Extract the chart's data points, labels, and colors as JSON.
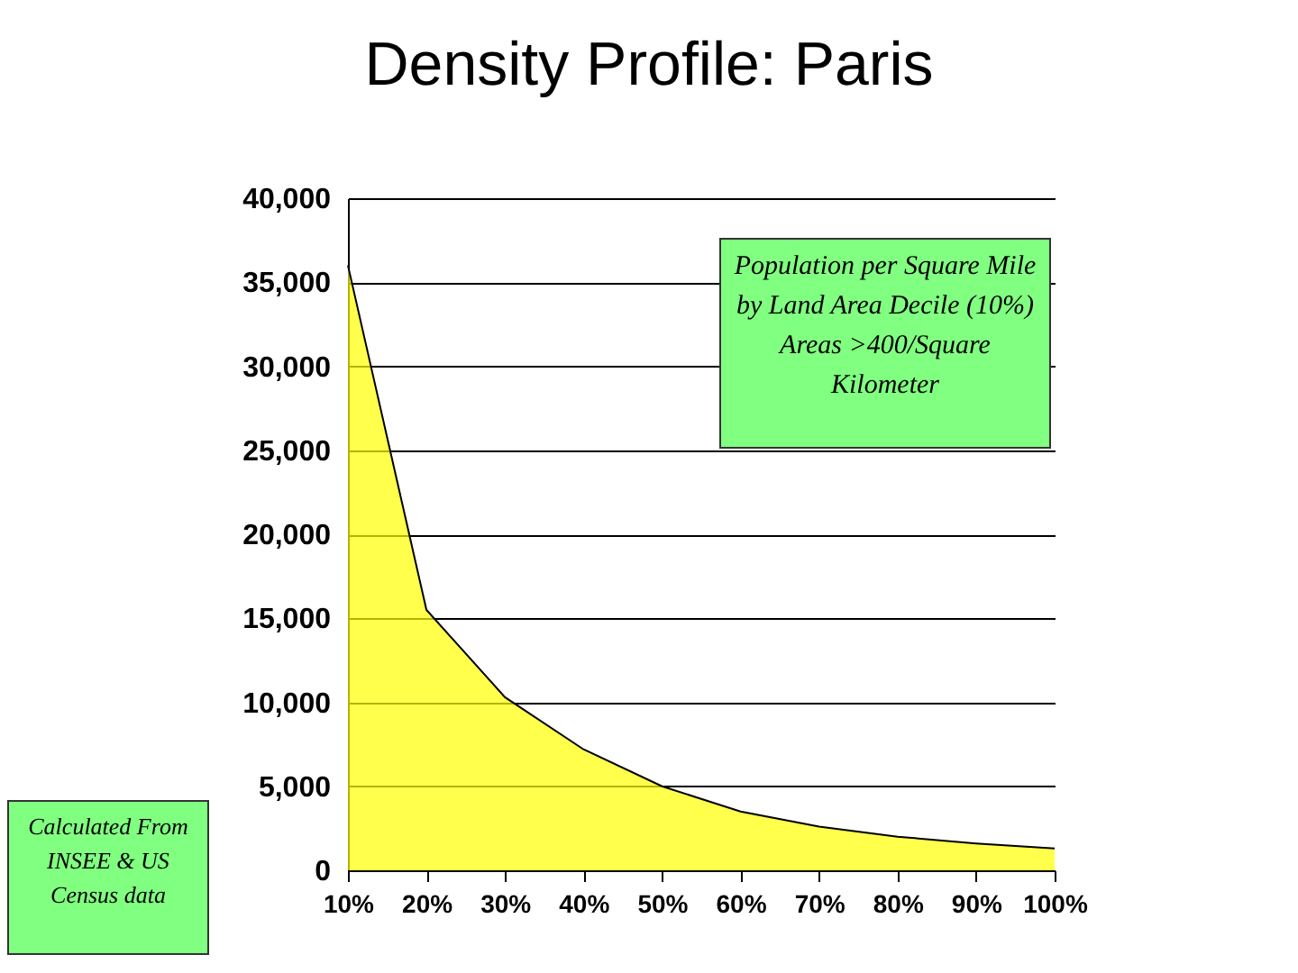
{
  "chart_data": {
    "type": "area",
    "title": "Density Profile: Paris",
    "categories": [
      "10%",
      "20%",
      "30%",
      "40%",
      "50%",
      "60%",
      "70%",
      "80%",
      "90%",
      "100%"
    ],
    "values": [
      36000,
      15500,
      10300,
      7200,
      5000,
      3500,
      2600,
      2000,
      1600,
      1300
    ],
    "color": "#ffff00",
    "ylim": [
      0,
      40000
    ],
    "yticks": [
      {
        "value": 0,
        "label": "0"
      },
      {
        "value": 5000,
        "label": "5,000"
      },
      {
        "value": 10000,
        "label": "10,000"
      },
      {
        "value": 15000,
        "label": "15,000"
      },
      {
        "value": 20000,
        "label": "20,000"
      },
      {
        "value": 25000,
        "label": "25,000"
      },
      {
        "value": 30000,
        "label": "30,000"
      },
      {
        "value": 35000,
        "label": "35,000"
      },
      {
        "value": 40000,
        "label": "40,000"
      }
    ],
    "grid": "y",
    "annotations": [
      "Population per Square Mile  by Land Area Decile (10%) Areas >400/Square Kilometer",
      "Calculated From INSEE & US Census data"
    ]
  }
}
